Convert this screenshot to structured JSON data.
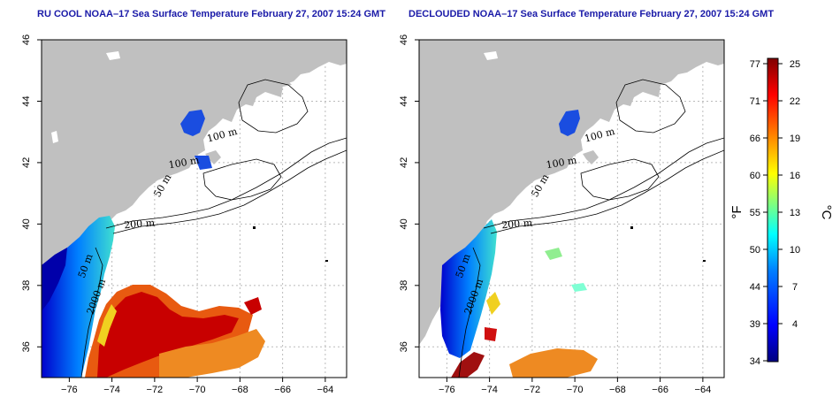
{
  "titles": {
    "left": "RU COOL NOAA–17 Sea Surface Temperature February 27, 2007 15:24 GMT",
    "right": "DECLOUDED NOAA–17 Sea Surface Temperature February 27, 2007 15:24 GMT"
  },
  "axes": {
    "x_ticks": [
      "−76",
      "−74",
      "−72",
      "−70",
      "−68",
      "−66",
      "−64"
    ],
    "y_ticks": [
      "36",
      "38",
      "40",
      "42",
      "44",
      "46"
    ],
    "x_values": [
      -76,
      -74,
      -72,
      -70,
      -68,
      -66,
      -64
    ],
    "y_values": [
      36,
      38,
      40,
      42,
      44,
      46
    ],
    "lon_range": [
      -77.3,
      -63.0
    ],
    "lat_range": [
      35.0,
      46.0
    ]
  },
  "contour_labels": {
    "left": [
      "100 m",
      "100 m",
      "50 m",
      "200 m",
      "50 m",
      "2000 m"
    ],
    "right": [
      "100 m",
      "100 m",
      "50 m",
      "200 m",
      "50 m",
      "2000 m"
    ]
  },
  "colorbar": {
    "fahrenheit_ticks": [
      "77",
      "71",
      "66",
      "60",
      "55",
      "50",
      "44",
      "39",
      "34"
    ],
    "celsius_ticks": [
      "25",
      "22",
      "19",
      "16",
      "13",
      "10",
      "7",
      "4"
    ],
    "fahrenheit_unit": "°F",
    "celsius_unit": "°C",
    "colors": [
      "#00007f",
      "#0000ff",
      "#007fff",
      "#00ffff",
      "#7fff7f",
      "#ffff00",
      "#ff7f00",
      "#ff0000",
      "#7f0000"
    ]
  },
  "colors": {
    "land": "#c0c0c0",
    "title": "#1a1aa8"
  }
}
